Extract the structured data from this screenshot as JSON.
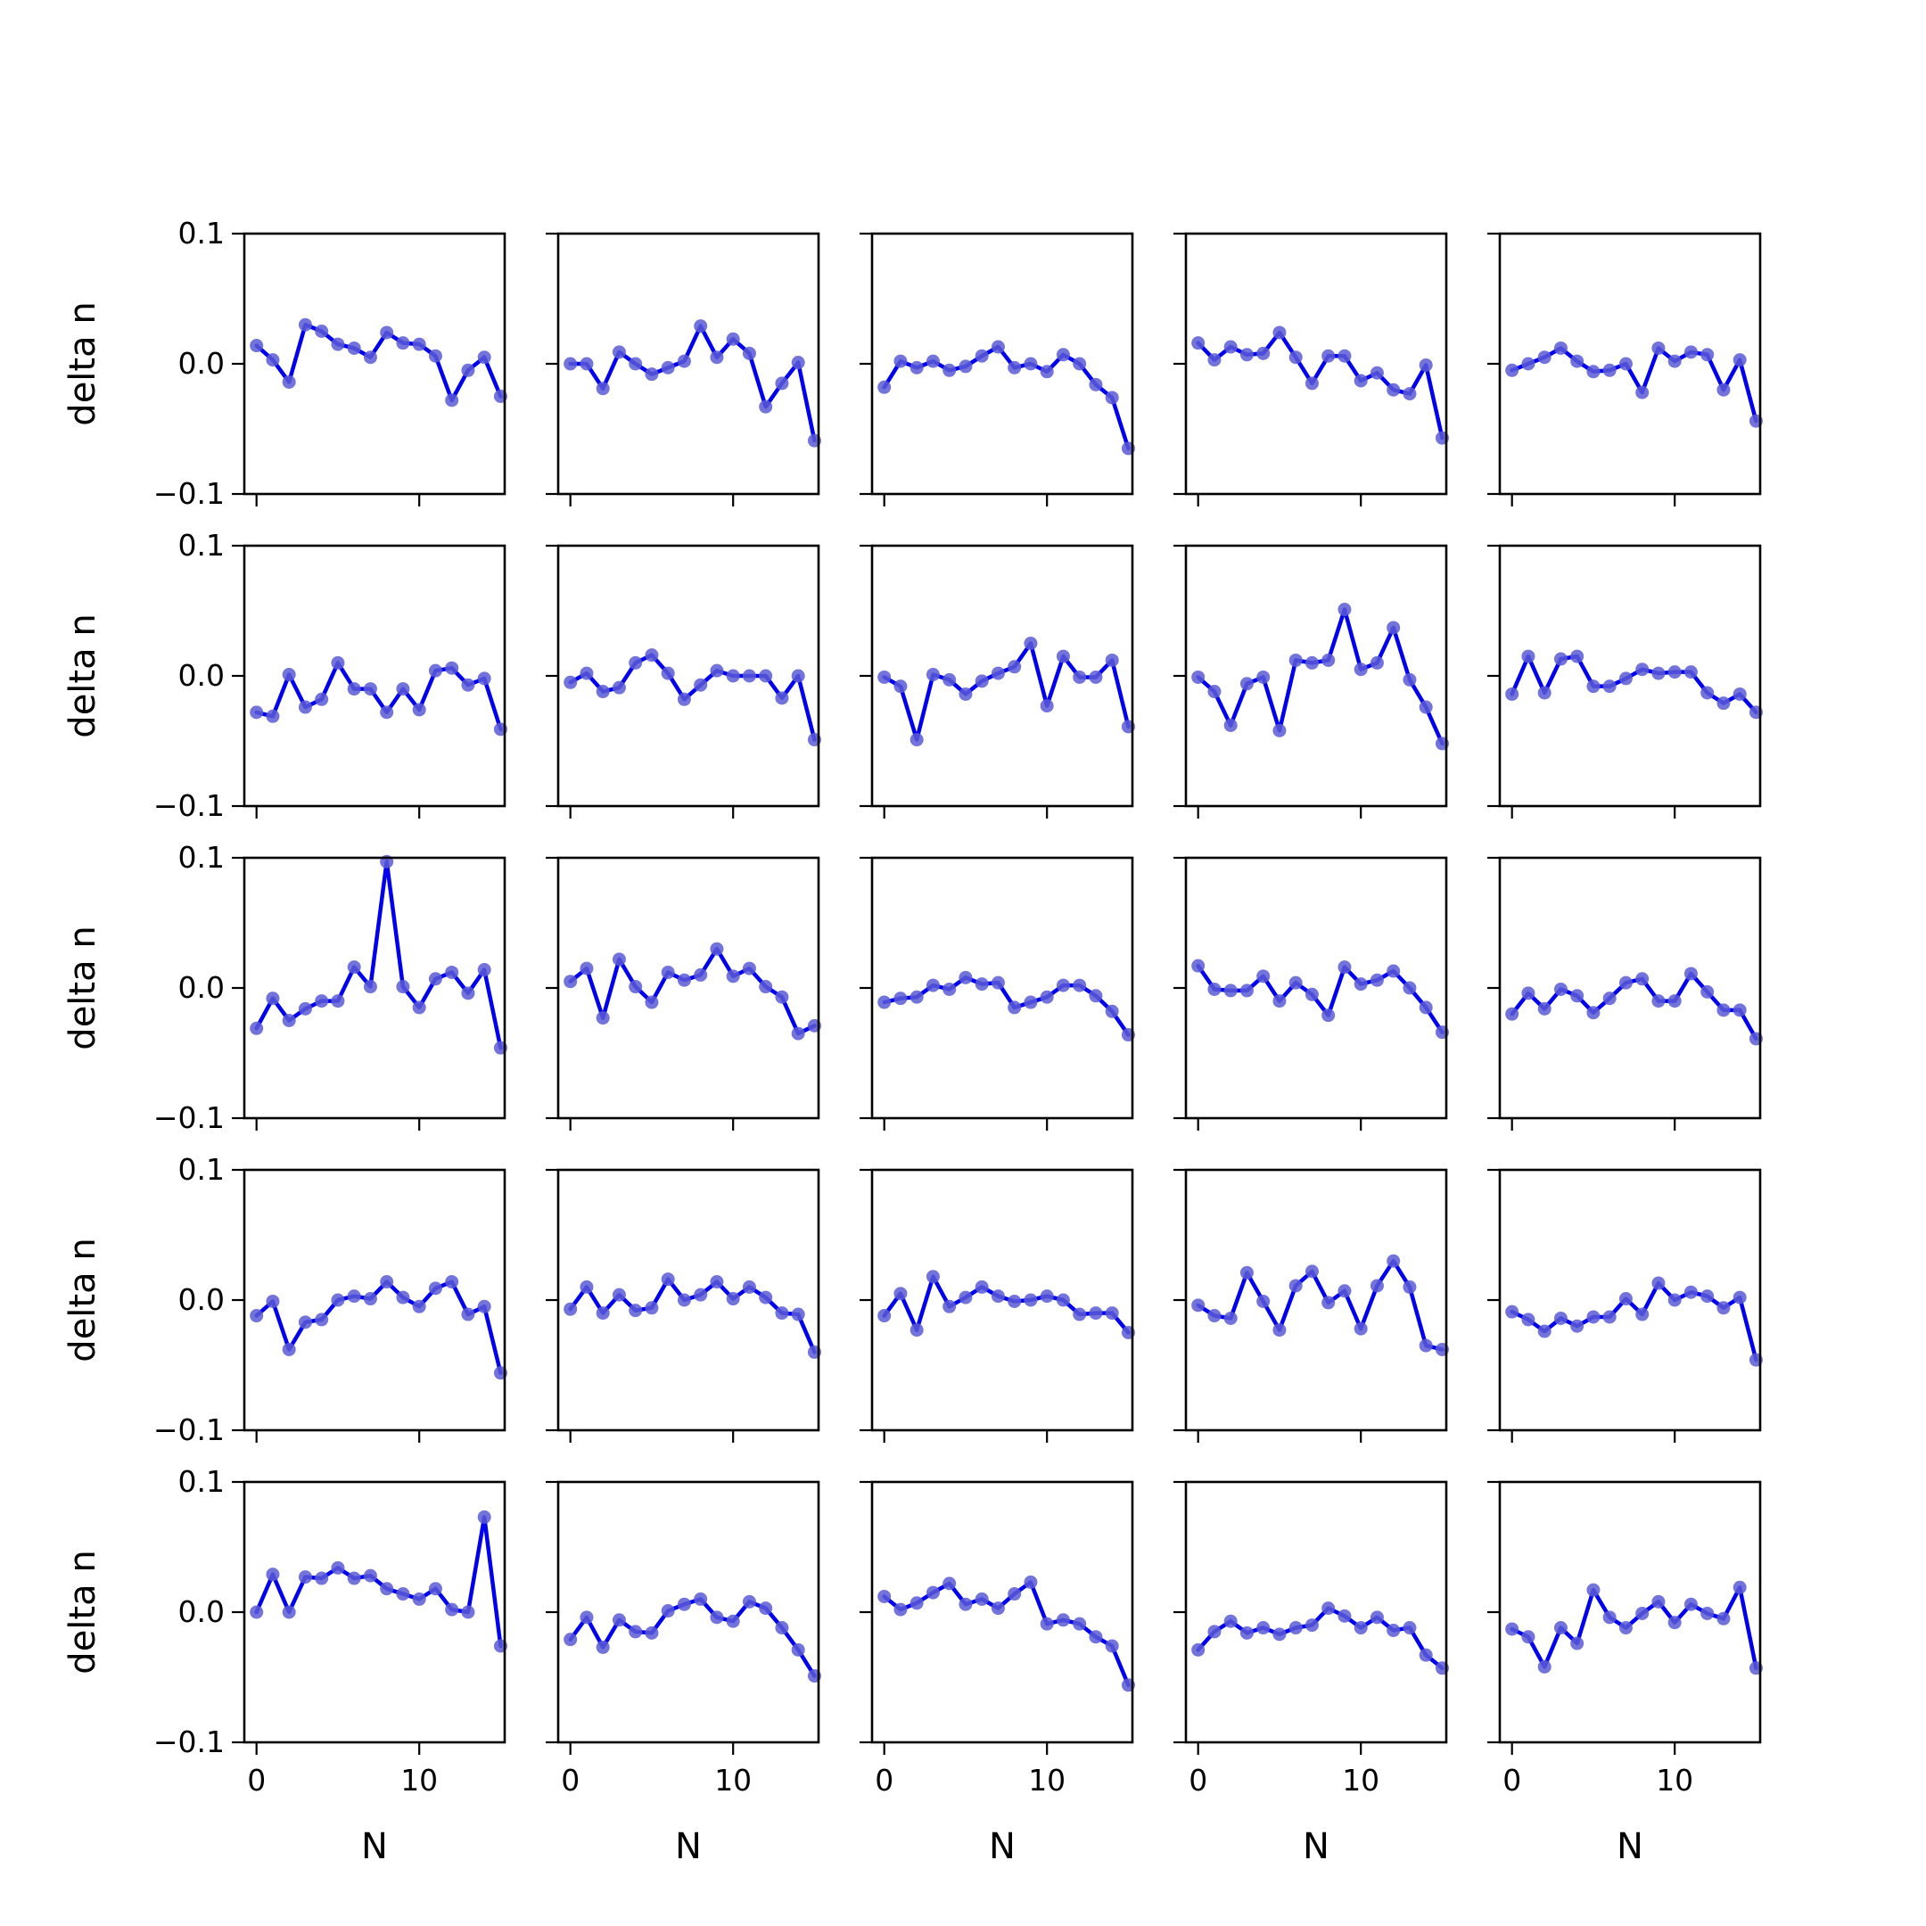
{
  "figure": {
    "rows": 5,
    "cols": 5,
    "line_color": "#0000ee",
    "marker_color": "#5b5bd6"
  },
  "chart_data": {
    "type": "line",
    "layout": "5x5 grid of small multiples",
    "xlabel": "N",
    "ylabel": "delta n",
    "xlim": [
      -0.75,
      15.25
    ],
    "ylim": [
      -0.1,
      0.1
    ],
    "x_ticks": [
      0,
      10
    ],
    "x_tick_labels": [
      "0",
      "10"
    ],
    "y_ticks": [
      -0.1,
      0.0,
      0.1
    ],
    "y_tick_labels": [
      "−0.1",
      "0.0",
      "0.1"
    ],
    "x": [
      0,
      1,
      2,
      3,
      4,
      5,
      6,
      7,
      8,
      9,
      10,
      11,
      12,
      13,
      14,
      15
    ],
    "grid": false,
    "legend": "none",
    "panels": [
      {
        "row": 0,
        "col": 0,
        "values": [
          0.014,
          0.003,
          -0.014,
          0.03,
          0.025,
          0.015,
          0.012,
          0.005,
          0.024,
          0.016,
          0.015,
          0.006,
          -0.028,
          -0.005,
          0.005,
          -0.025
        ]
      },
      {
        "row": 0,
        "col": 1,
        "values": [
          0.0,
          0.0,
          -0.019,
          0.009,
          0.0,
          -0.008,
          -0.003,
          0.002,
          0.029,
          0.005,
          0.019,
          0.008,
          -0.033,
          -0.015,
          0.001,
          -0.059
        ]
      },
      {
        "row": 0,
        "col": 2,
        "values": [
          -0.018,
          0.002,
          -0.003,
          0.002,
          -0.005,
          -0.002,
          0.006,
          0.013,
          -0.003,
          0.0,
          -0.006,
          0.007,
          0.0,
          -0.016,
          -0.026,
          -0.065
        ]
      },
      {
        "row": 0,
        "col": 3,
        "values": [
          0.016,
          0.003,
          0.013,
          0.007,
          0.008,
          0.024,
          0.005,
          -0.015,
          0.006,
          0.006,
          -0.013,
          -0.007,
          -0.02,
          -0.023,
          -0.001,
          -0.057
        ]
      },
      {
        "row": 0,
        "col": 4,
        "values": [
          -0.005,
          0.0,
          0.005,
          0.012,
          0.002,
          -0.006,
          -0.005,
          0.0,
          -0.022,
          0.012,
          0.002,
          0.009,
          0.007,
          -0.02,
          0.003,
          -0.044
        ]
      },
      {
        "row": 1,
        "col": 0,
        "values": [
          -0.028,
          -0.031,
          0.001,
          -0.024,
          -0.018,
          0.01,
          -0.01,
          -0.01,
          -0.028,
          -0.01,
          -0.026,
          0.004,
          0.006,
          -0.007,
          -0.002,
          -0.041
        ]
      },
      {
        "row": 1,
        "col": 1,
        "values": [
          -0.005,
          0.002,
          -0.012,
          -0.009,
          0.01,
          0.016,
          0.002,
          -0.018,
          -0.007,
          0.004,
          0.0,
          0.0,
          0.0,
          -0.017,
          0.0,
          -0.049
        ]
      },
      {
        "row": 1,
        "col": 2,
        "values": [
          -0.001,
          -0.008,
          -0.049,
          0.001,
          -0.003,
          -0.014,
          -0.004,
          0.002,
          0.007,
          0.025,
          -0.023,
          0.015,
          -0.001,
          -0.001,
          0.012,
          -0.039
        ]
      },
      {
        "row": 1,
        "col": 3,
        "values": [
          -0.001,
          -0.012,
          -0.038,
          -0.006,
          -0.001,
          -0.042,
          0.012,
          0.01,
          0.012,
          0.051,
          0.005,
          0.01,
          0.037,
          -0.003,
          -0.024,
          -0.052
        ]
      },
      {
        "row": 1,
        "col": 4,
        "values": [
          -0.014,
          0.015,
          -0.013,
          0.013,
          0.015,
          -0.008,
          -0.008,
          -0.002,
          0.005,
          0.002,
          0.003,
          0.003,
          -0.013,
          -0.021,
          -0.014,
          -0.028
        ]
      },
      {
        "row": 2,
        "col": 0,
        "values": [
          -0.031,
          -0.008,
          -0.025,
          -0.016,
          -0.01,
          -0.01,
          0.016,
          0.001,
          0.097,
          0.001,
          -0.015,
          0.007,
          0.012,
          -0.004,
          0.014,
          -0.046
        ]
      },
      {
        "row": 2,
        "col": 1,
        "values": [
          0.005,
          0.015,
          -0.023,
          0.022,
          0.001,
          -0.011,
          0.012,
          0.006,
          0.01,
          0.03,
          0.009,
          0.015,
          0.001,
          -0.007,
          -0.035,
          -0.029
        ]
      },
      {
        "row": 2,
        "col": 2,
        "values": [
          -0.011,
          -0.008,
          -0.007,
          0.002,
          -0.001,
          0.008,
          0.003,
          0.004,
          -0.015,
          -0.011,
          -0.007,
          0.002,
          0.002,
          -0.006,
          -0.018,
          -0.036
        ]
      },
      {
        "row": 2,
        "col": 3,
        "values": [
          0.017,
          -0.001,
          -0.002,
          -0.002,
          0.009,
          -0.01,
          0.004,
          -0.005,
          -0.021,
          0.016,
          0.003,
          0.006,
          0.013,
          0.0,
          -0.015,
          -0.034
        ]
      },
      {
        "row": 2,
        "col": 4,
        "values": [
          -0.02,
          -0.004,
          -0.016,
          -0.001,
          -0.006,
          -0.019,
          -0.008,
          0.004,
          0.007,
          -0.01,
          -0.01,
          0.011,
          -0.003,
          -0.017,
          -0.017,
          -0.039
        ]
      },
      {
        "row": 3,
        "col": 0,
        "values": [
          -0.012,
          -0.001,
          -0.038,
          -0.017,
          -0.015,
          0.0,
          0.003,
          0.001,
          0.014,
          0.002,
          -0.005,
          0.009,
          0.014,
          -0.011,
          -0.005,
          -0.056
        ]
      },
      {
        "row": 3,
        "col": 1,
        "values": [
          -0.007,
          0.01,
          -0.01,
          0.004,
          -0.008,
          -0.006,
          0.016,
          0.0,
          0.004,
          0.014,
          0.001,
          0.01,
          0.002,
          -0.01,
          -0.011,
          -0.04
        ]
      },
      {
        "row": 3,
        "col": 2,
        "values": [
          -0.012,
          0.005,
          -0.023,
          0.018,
          -0.005,
          0.002,
          0.01,
          0.003,
          -0.001,
          0.0,
          0.003,
          0.0,
          -0.011,
          -0.01,
          -0.01,
          -0.025
        ]
      },
      {
        "row": 3,
        "col": 3,
        "values": [
          -0.004,
          -0.012,
          -0.014,
          0.021,
          -0.001,
          -0.023,
          0.011,
          0.022,
          -0.002,
          0.007,
          -0.022,
          0.011,
          0.03,
          0.01,
          -0.035,
          -0.038
        ]
      },
      {
        "row": 3,
        "col": 4,
        "values": [
          -0.009,
          -0.015,
          -0.024,
          -0.014,
          -0.02,
          -0.013,
          -0.013,
          0.001,
          -0.011,
          0.013,
          0.0,
          0.006,
          0.003,
          -0.006,
          0.002,
          -0.046
        ]
      },
      {
        "row": 4,
        "col": 0,
        "values": [
          0.0,
          0.029,
          0.0,
          0.027,
          0.026,
          0.034,
          0.026,
          0.028,
          0.018,
          0.014,
          0.01,
          0.018,
          0.002,
          0.0,
          0.073,
          -0.026
        ]
      },
      {
        "row": 4,
        "col": 1,
        "values": [
          -0.021,
          -0.004,
          -0.027,
          -0.006,
          -0.015,
          -0.016,
          0.001,
          0.006,
          0.01,
          -0.004,
          -0.007,
          0.008,
          0.003,
          -0.012,
          -0.029,
          -0.049
        ]
      },
      {
        "row": 4,
        "col": 2,
        "values": [
          0.012,
          0.002,
          0.007,
          0.015,
          0.022,
          0.006,
          0.01,
          0.003,
          0.014,
          0.023,
          -0.009,
          -0.006,
          -0.009,
          -0.019,
          -0.026,
          -0.056
        ]
      },
      {
        "row": 4,
        "col": 3,
        "values": [
          -0.029,
          -0.015,
          -0.007,
          -0.016,
          -0.012,
          -0.017,
          -0.012,
          -0.01,
          0.003,
          -0.003,
          -0.012,
          -0.004,
          -0.014,
          -0.012,
          -0.033,
          -0.043
        ]
      },
      {
        "row": 4,
        "col": 4,
        "values": [
          -0.013,
          -0.019,
          -0.042,
          -0.012,
          -0.024,
          0.017,
          -0.004,
          -0.012,
          -0.001,
          0.008,
          -0.008,
          0.006,
          -0.001,
          -0.005,
          0.019,
          -0.043
        ]
      }
    ]
  }
}
